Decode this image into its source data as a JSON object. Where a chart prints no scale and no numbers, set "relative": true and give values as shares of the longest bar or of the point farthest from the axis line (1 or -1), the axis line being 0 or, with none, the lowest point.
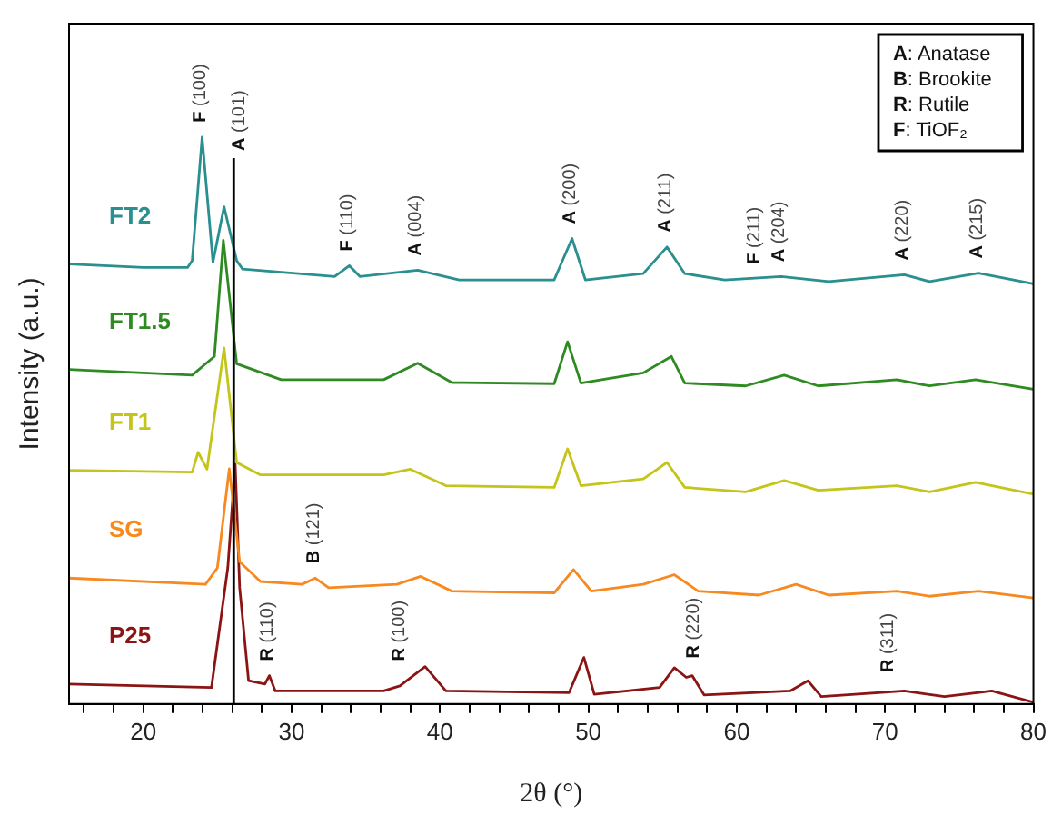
{
  "chart_data": {
    "type": "line",
    "relative": true,
    "xlabel": "2θ (°)",
    "ylabel": "Intensity (a.u.)",
    "xlim": [
      15,
      80
    ],
    "xticks": [
      {
        "value": 16,
        "label": null
      },
      {
        "value": 18,
        "label": null
      },
      20,
      {
        "value": 22,
        "label": null
      },
      {
        "value": 24,
        "label": null
      },
      {
        "value": 26,
        "label": null
      },
      {
        "value": 28,
        "label": null
      },
      30,
      {
        "value": 32,
        "label": null
      },
      {
        "value": 34,
        "label": null
      },
      {
        "value": 36,
        "label": null
      },
      {
        "value": 38,
        "label": null
      },
      40,
      {
        "value": 42,
        "label": null
      },
      {
        "value": 44,
        "label": null
      },
      {
        "value": 46,
        "label": null
      },
      {
        "value": 48,
        "label": null
      },
      50,
      {
        "value": 52,
        "label": null
      },
      {
        "value": 54,
        "label": null
      },
      {
        "value": 56,
        "label": null
      },
      {
        "value": 58,
        "label": null
      },
      60,
      {
        "value": 62,
        "label": null
      },
      {
        "value": 64,
        "label": null
      },
      {
        "value": 66,
        "label": null
      },
      {
        "value": 68,
        "label": null
      },
      70,
      {
        "value": 72,
        "label": null
      },
      {
        "value": 74,
        "label": null
      },
      {
        "value": 76,
        "label": null
      },
      {
        "value": 78,
        "label": null
      },
      80
    ],
    "grid": false,
    "legend": false,
    "marker": "none",
    "line_style": "solid",
    "series": [
      {
        "name": "FT2",
        "color": "#2a8f8f",
        "x": [
          15,
          20,
          23,
          23.3,
          23.97,
          24.7,
          25.45,
          26.3,
          26.7,
          32.9,
          33.9,
          34.6,
          38.5,
          41.3,
          47.7,
          48.9,
          49.8,
          53.7,
          55.3,
          56.5,
          59.2,
          63,
          66.2,
          71.3,
          73,
          76.3,
          80
        ],
        "values": [
          0.776,
          0.77,
          0.77,
          0.782,
          1.0,
          0.779,
          0.877,
          0.782,
          0.767,
          0.754,
          0.773,
          0.754,
          0.765,
          0.748,
          0.748,
          0.821,
          0.748,
          0.759,
          0.806,
          0.759,
          0.748,
          0.754,
          0.745,
          0.757,
          0.745,
          0.76,
          0.741
        ]
      },
      {
        "name": "FT1.5",
        "color": "#2e8b22",
        "x": [
          15,
          23.3,
          24.8,
          25.4,
          26.3,
          29.3,
          36.2,
          38.5,
          40.8,
          47.7,
          48.6,
          49.5,
          53.7,
          55.6,
          56.5,
          60.6,
          63.2,
          65.5,
          70.8,
          73,
          76.1,
          80
        ],
        "values": [
          0.59,
          0.58,
          0.613,
          0.818,
          0.6,
          0.572,
          0.572,
          0.601,
          0.567,
          0.565,
          0.639,
          0.566,
          0.584,
          0.613,
          0.566,
          0.561,
          0.58,
          0.561,
          0.572,
          0.561,
          0.572,
          0.555
        ]
      },
      {
        "name": "FT1",
        "color": "#c4c41a",
        "x": [
          15,
          23.3,
          23.7,
          24.3,
          25.45,
          26.3,
          27.9,
          36.2,
          38,
          40.4,
          47.7,
          48.6,
          49.5,
          53.7,
          55.3,
          56.5,
          60.6,
          63.2,
          65.5,
          70.8,
          73,
          76.1,
          80
        ],
        "values": [
          0.412,
          0.409,
          0.444,
          0.414,
          0.628,
          0.426,
          0.404,
          0.404,
          0.414,
          0.385,
          0.382,
          0.45,
          0.385,
          0.397,
          0.426,
          0.382,
          0.374,
          0.394,
          0.377,
          0.385,
          0.374,
          0.391,
          0.37
        ]
      },
      {
        "name": "SG",
        "color": "#f7891e",
        "x": [
          15,
          24.2,
          25,
          25.8,
          26.5,
          27.9,
          30.7,
          31.6,
          32.5,
          37.1,
          38.7,
          40.8,
          47.7,
          49,
          50.2,
          53.7,
          55.8,
          57.4,
          61.5,
          64,
          66.2,
          70.8,
          73,
          76.3,
          80
        ],
        "values": [
          0.222,
          0.211,
          0.24,
          0.415,
          0.251,
          0.216,
          0.211,
          0.222,
          0.205,
          0.211,
          0.225,
          0.199,
          0.196,
          0.237,
          0.199,
          0.211,
          0.228,
          0.199,
          0.192,
          0.211,
          0.192,
          0.199,
          0.19,
          0.199,
          0.187
        ]
      },
      {
        "name": "P25",
        "color": "#8b1414",
        "x": [
          15,
          24.6,
          25.7,
          26.2,
          26.5,
          27.1,
          28.2,
          28.5,
          28.9,
          36.2,
          37.3,
          39,
          40.4,
          48.7,
          49.7,
          50.4,
          54.8,
          55.8,
          56.6,
          57,
          57.8,
          63.6,
          64.8,
          65.7,
          71.3,
          74,
          77.2,
          80
        ],
        "values": [
          0.035,
          0.029,
          0.24,
          0.423,
          0.205,
          0.041,
          0.035,
          0.05,
          0.023,
          0.023,
          0.032,
          0.066,
          0.023,
          0.02,
          0.082,
          0.017,
          0.029,
          0.064,
          0.047,
          0.05,
          0.016,
          0.023,
          0.041,
          0.013,
          0.023,
          0.013,
          0.023,
          0.003
        ]
      }
    ],
    "ref_lines": [
      {
        "axis": "x",
        "value": 26.1,
        "label": "A (101)",
        "color": "#000000"
      }
    ],
    "annotations": [
      {
        "text": "F (100)",
        "x": 24,
        "y": 1.0
      },
      {
        "text": "F (110)",
        "x": 33.9,
        "y": 0.773
      },
      {
        "text": "A (004)",
        "x": 38.5,
        "y": 0.765
      },
      {
        "text": "A (200)",
        "x": 48.9,
        "y": 0.821
      },
      {
        "text": "A (211)",
        "x": 55.3,
        "y": 0.806
      },
      {
        "text": "F (211)",
        "x": 61.3,
        "y": 0.75
      },
      {
        "text": "A (204)",
        "x": 63,
        "y": 0.754
      },
      {
        "text": "A (220)",
        "x": 71.3,
        "y": 0.757
      },
      {
        "text": "A (215)",
        "x": 76.3,
        "y": 0.76
      },
      {
        "text": "B (121)",
        "x": 31.6,
        "y": 0.222
      },
      {
        "text": "R (110)",
        "x": 28.5,
        "y": 0.05
      },
      {
        "text": "R (100)",
        "x": 37.4,
        "y": 0.05
      },
      {
        "text": "R (220)",
        "x": 57.2,
        "y": 0.055
      },
      {
        "text": "R (311)",
        "x": 70.3,
        "y": 0.03
      },
      "A: Anatase",
      "B: Brookite",
      "R: Rutile",
      "F: TiOF₂"
    ]
  }
}
